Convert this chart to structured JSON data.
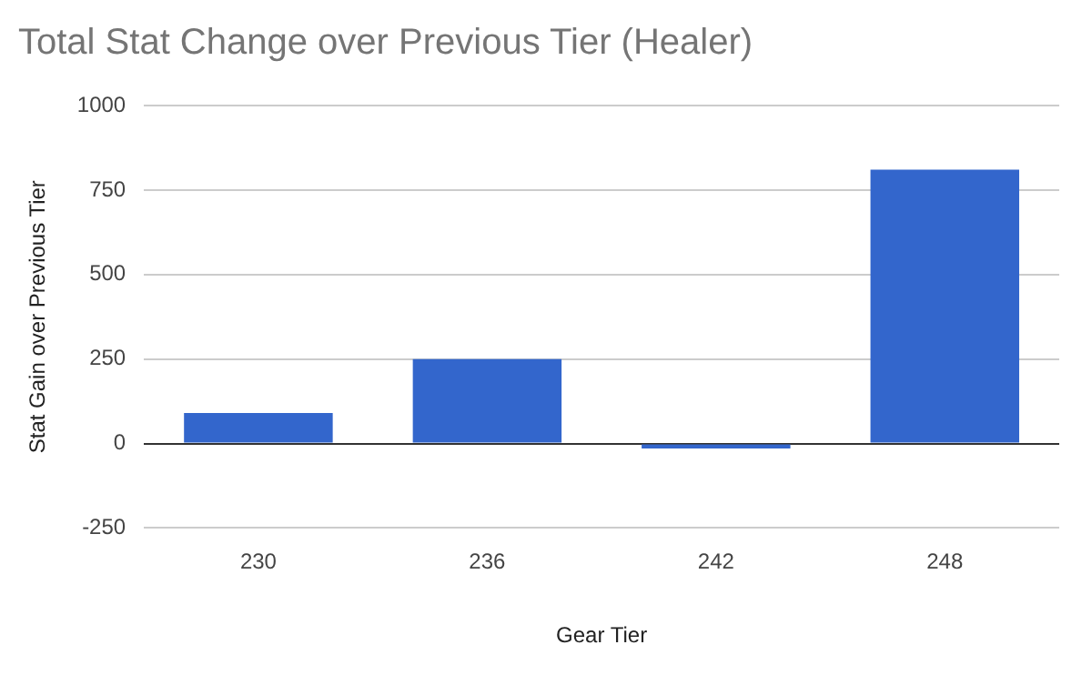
{
  "chart_data": {
    "type": "bar",
    "title": "Total Stat Change over Previous Tier (Healer)",
    "xlabel": "Gear Tier",
    "ylabel": "Stat Gain over Previous Tier",
    "categories": [
      "230",
      "236",
      "242",
      "248"
    ],
    "values": [
      90,
      250,
      -15,
      810
    ],
    "color": "#3366cc",
    "ylim": [
      -250,
      1000
    ],
    "yticks": [
      -250,
      0,
      250,
      500,
      750,
      1000
    ],
    "grid": "y"
  }
}
